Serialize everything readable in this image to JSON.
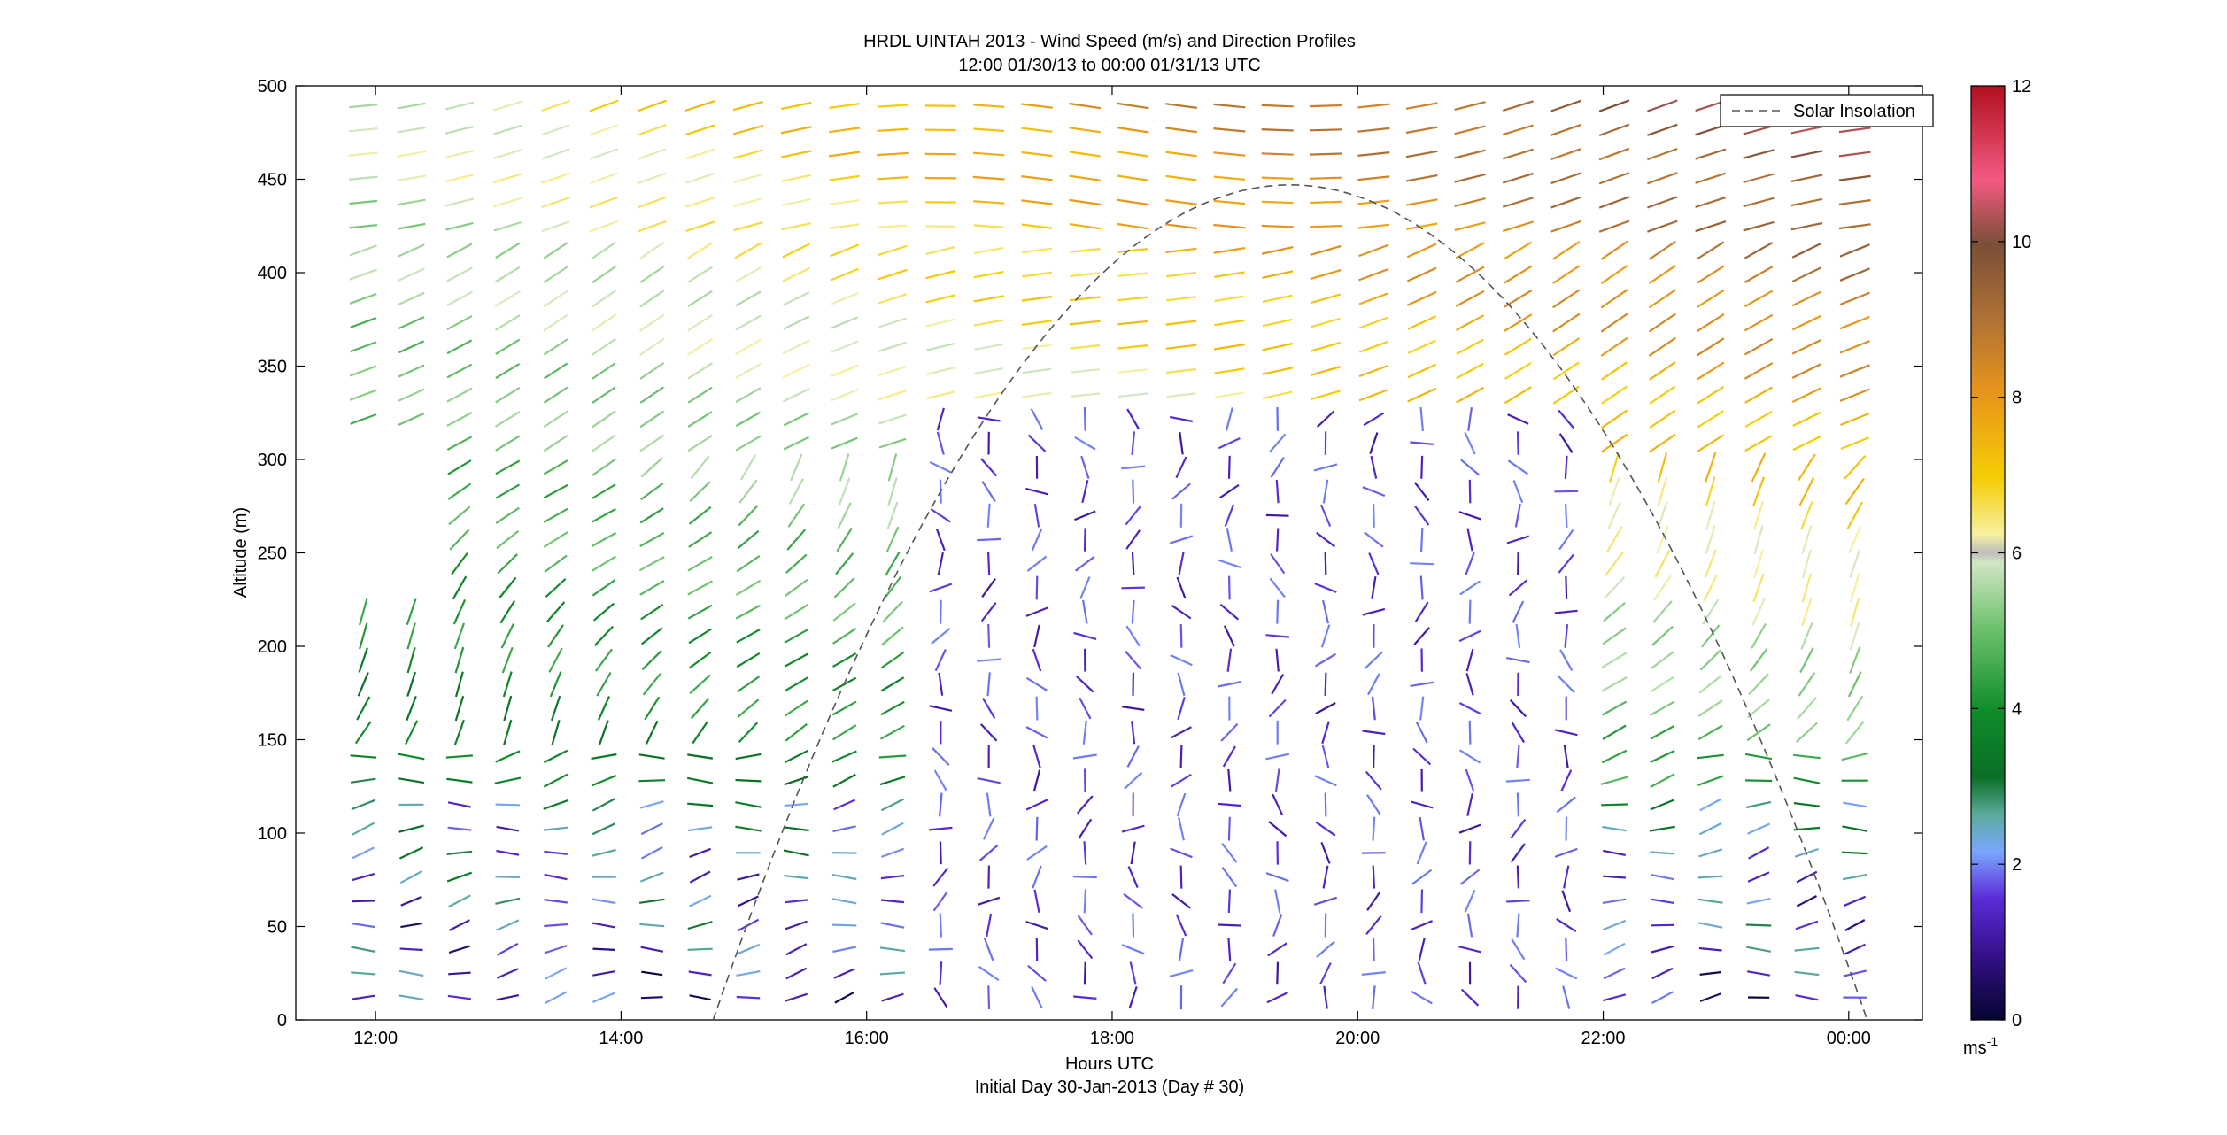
{
  "chart_data": {
    "type": "quiver",
    "title": "HRDL UINTAH 2013 - Wind Speed (m/s) and Direction Profiles",
    "subtitle": "12:00 01/30/13 to 00:00 01/31/13  UTC",
    "xlabel": "Hours UTC",
    "footer": "Initial Day 30-Jan-2013 (Day # 30)",
    "ylabel": "Altitude (m)",
    "x_ticks": [
      "12:00",
      "14:00",
      "16:00",
      "18:00",
      "20:00",
      "22:00",
      "00:00"
    ],
    "x_tick_hours": [
      12,
      14,
      16,
      18,
      20,
      22,
      24
    ],
    "xlim_hours": [
      11.35,
      24.6
    ],
    "y_ticks": [
      0,
      50,
      100,
      150,
      200,
      250,
      300,
      350,
      400,
      450,
      500
    ],
    "ylim": [
      0,
      500
    ],
    "colorbar": {
      "ticks": [
        0,
        2,
        4,
        6,
        8,
        10,
        12
      ],
      "range": [
        0,
        12
      ],
      "unit_label": "ms",
      "unit_superscript": "-1"
    },
    "legend": {
      "entries": [
        "Solar Insolation"
      ],
      "position": "top-right",
      "style": "dashed"
    },
    "solar_insolation": {
      "start_hour": 14.75,
      "peak_hour": 19.45,
      "end_hour": 24.15,
      "peak_altitude": 447
    }
  }
}
